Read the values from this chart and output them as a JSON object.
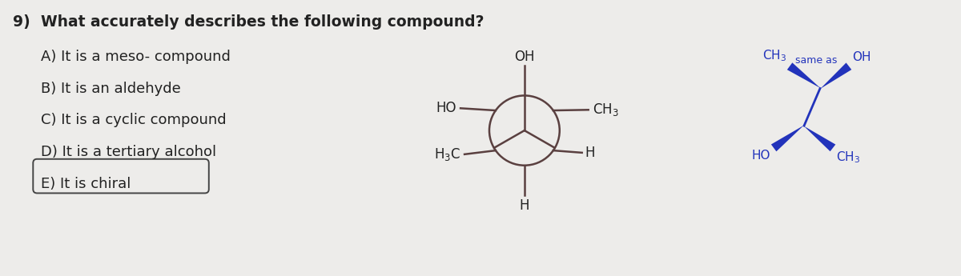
{
  "bg_color": "#edecea",
  "question_number": "9)",
  "question_text": "What accurately describes the following compound?",
  "options": [
    "A) It is a meso- compound",
    "B) It is an aldehyde",
    "C) It is a cyclic compound",
    "D) It is a tertiary alcohol",
    "E) It is chiral"
  ],
  "answer_index": 4,
  "question_fontsize": 13.5,
  "option_fontsize": 13,
  "text_color": "#222222",
  "box_color": "#444444",
  "molecule_color": "#5a4040",
  "wedge_color": "#2233bb",
  "same_as_color": "#2233bb",
  "same_as_text": "same as",
  "same_as_fontsize": 9
}
